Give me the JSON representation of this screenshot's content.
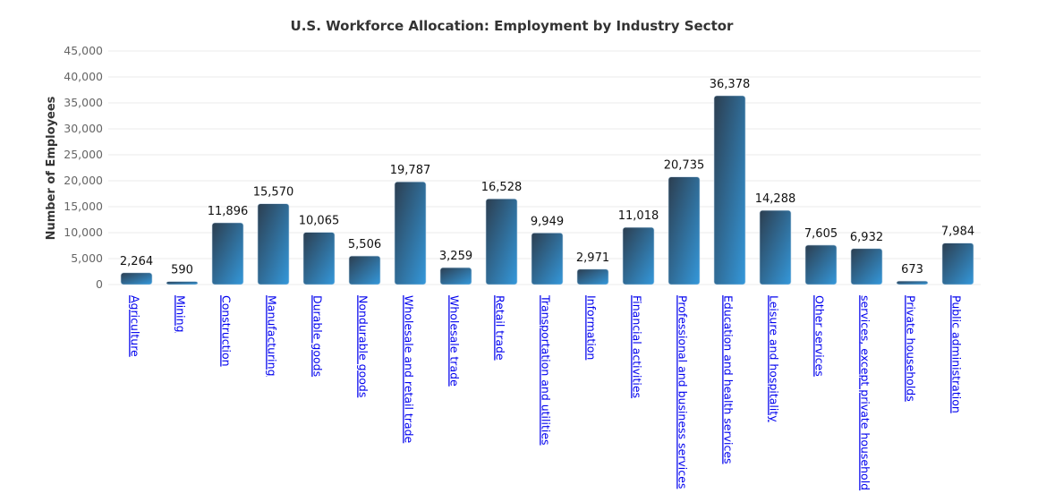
{
  "chart_data": {
    "type": "bar",
    "title": "U.S. Workforce Allocation: Employment by Industry Sector",
    "xlabel": "",
    "ylabel": "Number of Employees",
    "ylim": [
      0,
      45000
    ],
    "yticks": [
      0,
      5000,
      10000,
      15000,
      20000,
      25000,
      30000,
      35000,
      40000,
      45000
    ],
    "ytick_labels": [
      "0",
      "5,000",
      "10,000",
      "15,000",
      "20,000",
      "25,000",
      "30,000",
      "35,000",
      "40,000",
      "45,000"
    ],
    "grid": true,
    "categories": [
      "Agriculture",
      "Mining",
      "Construction",
      "Manufacturing",
      "Durable goods",
      "Nondurable goods",
      "Wholesale and retail trade",
      "Wholesale trade",
      "Retail trade",
      "Transportation and utilities",
      "Information",
      "Financial activities",
      "Professional and business services",
      "Education and health services",
      "Leisure and hospitality",
      "Other services",
      "services, except private household",
      "Private households",
      "Public administration"
    ],
    "values": [
      2264,
      590,
      11896,
      15570,
      10065,
      5506,
      19787,
      3259,
      16528,
      9949,
      2971,
      11018,
      20735,
      36378,
      14288,
      7605,
      6932,
      673,
      7984
    ],
    "value_labels": [
      "2,264",
      "590",
      "11,896",
      "15,570",
      "10,065",
      "5,506",
      "19,787",
      "3,259",
      "16,528",
      "9,949",
      "2,971",
      "11,018",
      "20,735",
      "36,378",
      "14,288",
      "7,605",
      "6,932",
      "673",
      "7,984"
    ],
    "colors": {
      "bar_start": "#2c3e50",
      "bar_end": "#3498db",
      "link": "#0000ee"
    }
  }
}
